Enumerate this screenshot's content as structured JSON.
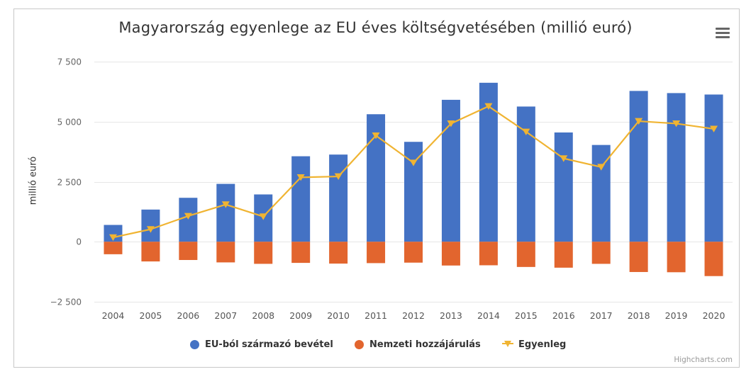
{
  "title": "Magyarország egyenlege az EU éves költségvetésében (millió euró)",
  "credit": "Highcharts.com",
  "colors": {
    "income": "#4472c4",
    "contribution": "#e2652e",
    "balance": "#f0b432",
    "grid": "#e6e6e6"
  },
  "legend": [
    {
      "label": "EU-ból származó bevétel",
      "icon": "dot"
    },
    {
      "label": "Nemzeti hozzájárulás",
      "icon": "dot"
    },
    {
      "label": "Egyenleg",
      "icon": "line-triangle"
    }
  ],
  "chart_data": {
    "type": "bar",
    "title": "Magyarország egyenlege az EU éves költségvetésében (millió euró)",
    "ylabel": "millió euró",
    "xlabel": "",
    "ylim": [
      -2500,
      7500
    ],
    "yticks": [
      -2500,
      0,
      2500,
      5000,
      7500
    ],
    "ytick_labels": [
      "−2 500",
      "0",
      "2 500",
      "5 000",
      "7 500"
    ],
    "grid": true,
    "legend_position": "bottom-center",
    "categories": [
      "2004",
      "2005",
      "2006",
      "2007",
      "2008",
      "2009",
      "2010",
      "2011",
      "2012",
      "2013",
      "2014",
      "2015",
      "2016",
      "2017",
      "2018",
      "2019",
      "2020"
    ],
    "series": [
      {
        "name": "EU-ból származó bevétel",
        "type": "bar",
        "values": [
          700,
          1340,
          1830,
          2410,
          1970,
          3560,
          3630,
          5310,
          4160,
          5910,
          6620,
          5630,
          4550,
          4030,
          6280,
          6190,
          6130
        ]
      },
      {
        "name": "Nemzeti hozzájárulás",
        "type": "bar",
        "values": [
          -520,
          -820,
          -760,
          -860,
          -920,
          -880,
          -910,
          -890,
          -870,
          -990,
          -980,
          -1050,
          -1080,
          -920,
          -1260,
          -1270,
          -1430
        ]
      },
      {
        "name": "Egyenleg",
        "type": "line",
        "values": [
          180,
          520,
          1070,
          1550,
          1050,
          2680,
          2720,
          4420,
          3290,
          4920,
          5640,
          4580,
          3470,
          3110,
          5020,
          4920,
          4700
        ]
      }
    ]
  }
}
